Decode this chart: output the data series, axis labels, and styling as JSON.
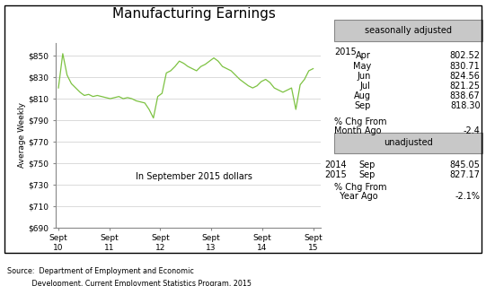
{
  "title": "Manufacturing Earnings",
  "ylabel": "Average Weekly",
  "ylim": [
    690,
    862
  ],
  "yticks": [
    690,
    710,
    730,
    750,
    770,
    790,
    810,
    830,
    850
  ],
  "ytick_labels": [
    "$690",
    "$710",
    "$730",
    "$750",
    "$770",
    "$790",
    "$810",
    "$830",
    "$850"
  ],
  "xtick_positions": [
    0,
    1,
    2,
    3,
    4,
    5
  ],
  "xtick_labels": [
    "Sept\n10",
    "Sept\n11",
    "Sept\n12",
    "Sept\n13",
    "Sept\n14",
    "Sept\n15"
  ],
  "line_color": "#7dc242",
  "annotation": "In September 2015 dollars",
  "source_line1": "Source:  Department of Employment and Economic",
  "source_line2": "           Development, Current Employment Statistics Program, 2015",
  "seasonally_adjusted_label": "seasonally adjusted",
  "unadjusted_label": "unadjusted",
  "sa_year": "2015",
  "sa_data": [
    [
      "Apr",
      "802.52"
    ],
    [
      "May",
      "830.71"
    ],
    [
      "Jun",
      "824.56"
    ],
    [
      "Jul",
      "821.25"
    ],
    [
      "Aug",
      "838.67"
    ],
    [
      "Sep",
      "818.30"
    ]
  ],
  "sa_pct_chg_label1": "% Chg From",
  "sa_pct_chg_label2": "Month Ago",
  "sa_pct_chg_value": "-2.4",
  "ua_data": [
    [
      "2014",
      "Sep",
      "845.05"
    ],
    [
      "2015",
      "Sep",
      "827.17"
    ]
  ],
  "ua_pct_chg_label1": "% Chg From",
  "ua_pct_chg_label2": "  Year Ago",
  "ua_pct_chg_value": "-2.1%",
  "y_values": [
    820,
    852,
    832,
    824,
    820,
    816,
    813,
    814,
    812,
    813,
    812,
    811,
    810,
    811,
    812,
    810,
    811,
    810,
    808,
    807,
    806,
    800,
    792,
    812,
    815,
    834,
    836,
    840,
    845,
    843,
    840,
    838,
    836,
    840,
    842,
    845,
    848,
    845,
    840,
    838,
    836,
    832,
    828,
    825,
    822,
    820,
    822,
    826,
    828,
    825,
    820,
    818,
    816,
    818,
    820,
    800,
    823,
    828,
    836,
    838
  ]
}
